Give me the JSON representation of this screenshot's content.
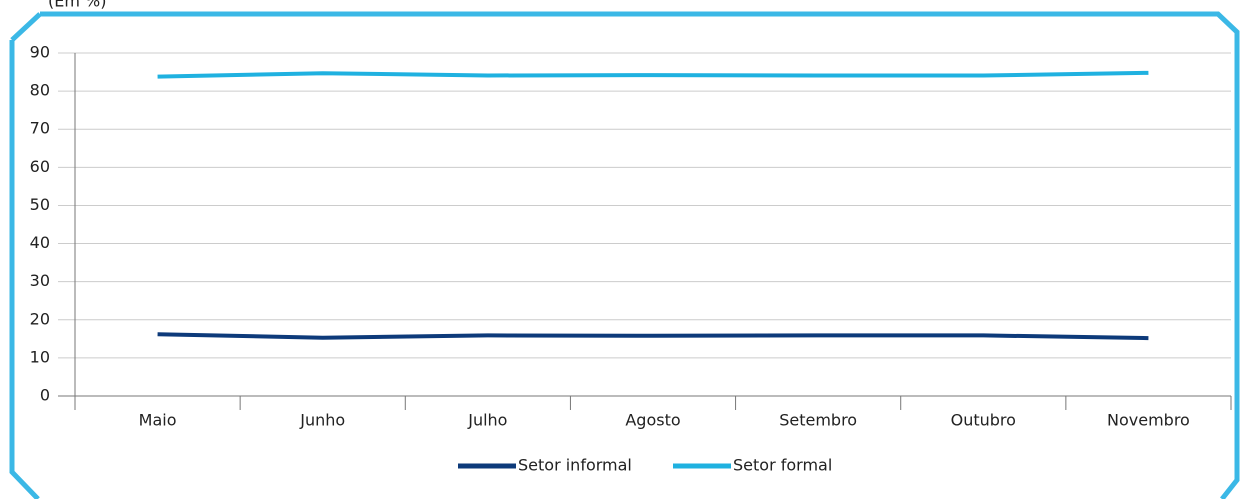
{
  "chart_data": {
    "type": "line",
    "subtitle": "(Em %)",
    "categories": [
      "Maio",
      "Junho",
      "Julho",
      "Agosto",
      "Setembro",
      "Outubro",
      "Novembro"
    ],
    "series": [
      {
        "name": "Setor informal",
        "color": "#0d3a7a",
        "values": [
          16.2,
          15.3,
          15.9,
          15.8,
          15.9,
          15.9,
          15.2
        ]
      },
      {
        "name": "Setor formal",
        "color": "#1fb1e0",
        "values": [
          83.8,
          84.7,
          84.1,
          84.2,
          84.1,
          84.1,
          84.8
        ]
      }
    ],
    "ylim": [
      0,
      90
    ],
    "yticks": [
      0,
      10,
      20,
      30,
      40,
      50,
      60,
      70,
      80,
      90
    ],
    "grid": true,
    "legend": "bottom"
  }
}
